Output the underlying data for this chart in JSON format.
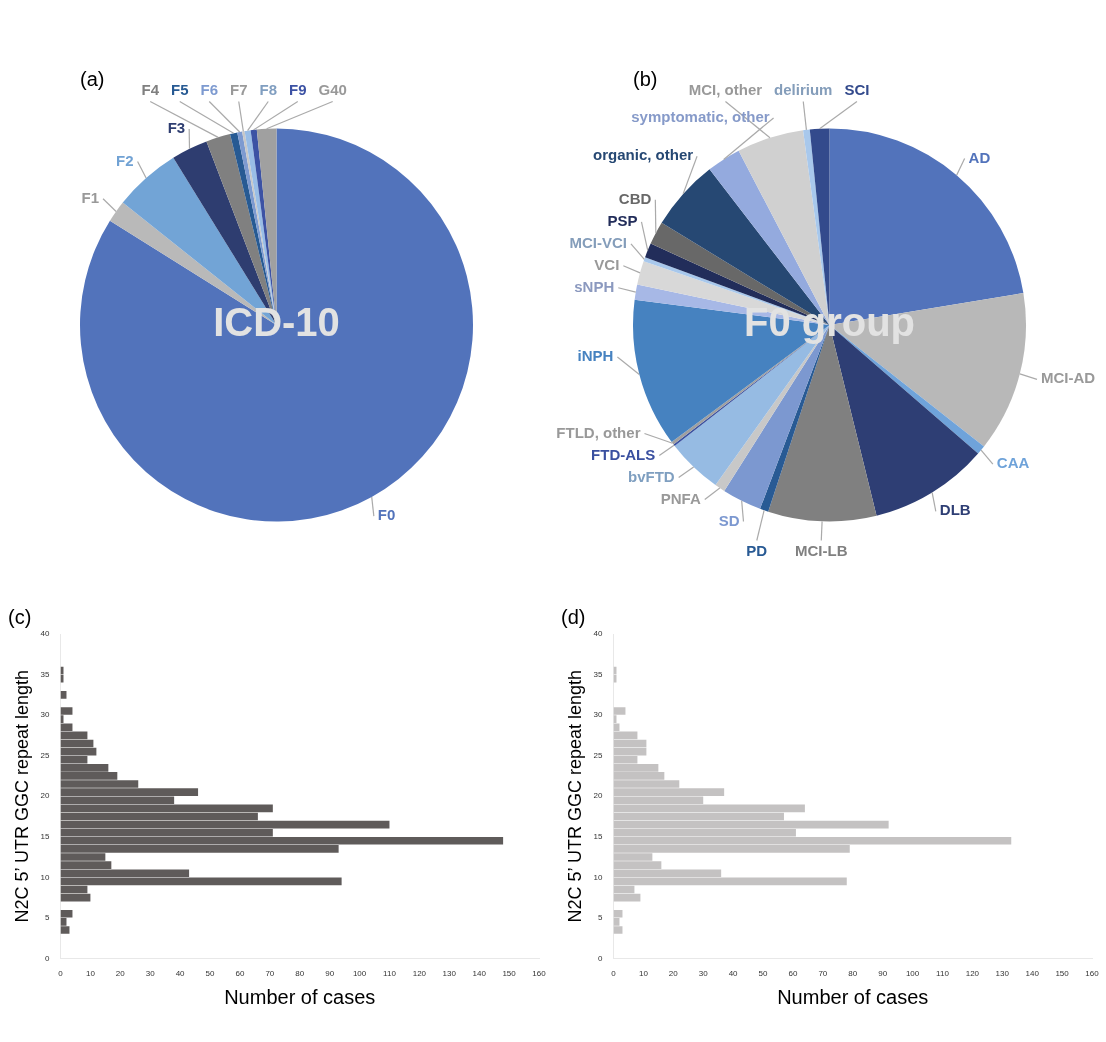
{
  "chart_data": [
    {
      "type": "pie",
      "title": "(a)",
      "annotations": [
        "ICD-10"
      ],
      "legend": false,
      "categories": [
        "F0",
        "F1",
        "F2",
        "F3",
        "F4",
        "F5",
        "F6",
        "F7",
        "F8",
        "F9",
        "G40"
      ],
      "values": [
        83.9,
        1.8,
        5.5,
        3.0,
        2.0,
        0.6,
        0.4,
        0.2,
        0.5,
        0.5,
        1.6
      ],
      "colors": [
        "#5273bb",
        "#b9b9b9",
        "#72a4d6",
        "#2e3d70",
        "#808080",
        "#275a93",
        "#7d9ad0",
        "#c8c8c8",
        "#99bde6",
        "#3c52a4",
        "#a0a0a0"
      ]
    },
    {
      "type": "pie",
      "title": "(b)",
      "annotations": [
        "F0 group"
      ],
      "legend": false,
      "categories": [
        "AD",
        "MCI-AD",
        "CAA",
        "DLB",
        "MCI-LB",
        "PD",
        "SD",
        "PNFA",
        "bvFTD",
        "FTD-ALS",
        "FTLD, other",
        "iNPH",
        "sNPH",
        "VCI",
        "MCI-VCI",
        "PSP",
        "CBD",
        "organic, other",
        "symptomatic, other",
        "MCI, other",
        "delirium",
        "SCI"
      ],
      "values": [
        22.4,
        13.2,
        0.75,
        9.8,
        8.9,
        0.7,
        3.25,
        0.85,
        4.6,
        0.15,
        0.25,
        12.2,
        1.25,
        1.95,
        0.35,
        1.2,
        1.9,
        5.85,
        2.8,
        5.5,
        0.55,
        1.6
      ],
      "colors": [
        "#5273bb",
        "#b8b8b8",
        "#6fa3da",
        "#2e3e74",
        "#808080",
        "#285a94",
        "#7c98d0",
        "#c8c8c8",
        "#96bbe3",
        "#3a50a0",
        "#a0a0a0",
        "#4682c0",
        "#a7b8e6",
        "#d8d8d8",
        "#a8c8ec",
        "#222d5a",
        "#686868",
        "#264873",
        "#94aade",
        "#d0d0d0",
        "#a8c8ec",
        "#334a8c"
      ]
    },
    {
      "type": "histogram",
      "title": "(c)",
      "orientation": "horizontal",
      "xlabel": "Number of cases",
      "ylabel": "N2C 5’ UTR GGC repeat length",
      "color": "#5f5b5a",
      "legend": false,
      "bins": [
        3,
        4,
        5,
        6,
        7,
        8,
        9,
        10,
        11,
        12,
        13,
        14,
        15,
        16,
        17,
        18,
        19,
        20,
        21,
        22,
        23,
        24,
        25,
        26,
        27,
        28,
        29,
        30,
        31,
        32,
        33,
        34,
        35,
        36
      ],
      "values": [
        3,
        2,
        4,
        0,
        10,
        9,
        94,
        43,
        17,
        15,
        93,
        148,
        71,
        110,
        66,
        71,
        38,
        46,
        26,
        19,
        16,
        9,
        12,
        11,
        9,
        4,
        1,
        4,
        0,
        2,
        0,
        1,
        1
      ],
      "xlim": [
        0,
        160
      ],
      "xticks": [
        0,
        10,
        20,
        30,
        40,
        50,
        60,
        70,
        80,
        90,
        100,
        110,
        120,
        130,
        140,
        150,
        160
      ],
      "ylim": [
        0,
        40
      ],
      "yticks": [
        0,
        5,
        10,
        15,
        20,
        25,
        30,
        35,
        40
      ]
    },
    {
      "type": "histogram",
      "title": "(d)",
      "orientation": "horizontal",
      "xlabel": "Number of cases",
      "ylabel": "N2C 5’ UTR GGC repeat length",
      "color": "#c4c2c2",
      "legend": false,
      "bins": [
        3,
        4,
        5,
        6,
        7,
        8,
        9,
        10,
        11,
        12,
        13,
        14,
        15,
        16,
        17,
        18,
        19,
        20,
        21,
        22,
        23,
        24,
        25,
        26,
        27,
        28,
        29,
        30,
        31,
        32,
        33,
        34,
        35,
        36
      ],
      "values": [
        3,
        2,
        3,
        0,
        9,
        7,
        78,
        36,
        16,
        13,
        79,
        133,
        61,
        92,
        57,
        64,
        30,
        37,
        22,
        17,
        15,
        8,
        11,
        11,
        8,
        2,
        1,
        4,
        0,
        0,
        0,
        1,
        1
      ],
      "xlim": [
        0,
        160
      ],
      "xticks": [
        0,
        10,
        20,
        30,
        40,
        50,
        60,
        70,
        80,
        90,
        100,
        110,
        120,
        130,
        140,
        150,
        160
      ],
      "ylim": [
        0,
        40
      ],
      "yticks": [
        0,
        5,
        10,
        15,
        20,
        25,
        30,
        35,
        40
      ]
    }
  ]
}
